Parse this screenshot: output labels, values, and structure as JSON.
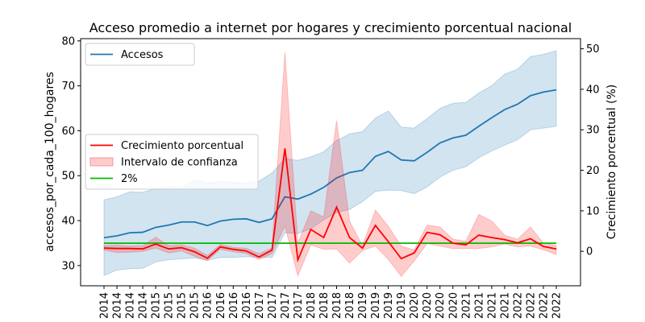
{
  "chart_data": {
    "type": "line",
    "title": "Acceso promedio a internet por hogares y crecimiento porcentual nacional",
    "x_tick_labels": [
      "2014",
      "2014",
      "2014",
      "2014",
      "2015",
      "2015",
      "2015",
      "2015",
      "2016",
      "2016",
      "2016",
      "2016",
      "2017",
      "2017",
      "2017",
      "2017",
      "2018",
      "2018",
      "2018",
      "2018",
      "2019",
      "2019",
      "2019",
      "2019",
      "2020",
      "2020",
      "2020",
      "2020",
      "2021",
      "2021",
      "2021",
      "2021",
      "2022",
      "2022",
      "2022",
      "2022"
    ],
    "left_axis": {
      "label": "accesos_por_cada_100_hogares",
      "ylim": [
        25.5,
        80.5
      ],
      "ticks": [
        30,
        40,
        50,
        60,
        70,
        80
      ]
    },
    "right_axis": {
      "label": "Crecimiento porcentual (%)",
      "ylim": [
        -8.5,
        52.5
      ],
      "ticks": [
        0,
        10,
        20,
        30,
        40,
        50
      ]
    },
    "series": [
      {
        "name": "Accesos",
        "axis": "left",
        "color": "#1f77b4",
        "values": [
          36.2,
          36.6,
          37.3,
          37.4,
          38.5,
          39.0,
          39.7,
          39.7,
          38.9,
          39.9,
          40.3,
          40.4,
          39.6,
          40.4,
          45.3,
          44.8,
          45.9,
          47.4,
          49.5,
          50.7,
          51.2,
          54.3,
          55.4,
          53.5,
          53.3,
          55.2,
          57.3,
          58.4,
          59.0,
          61.0,
          62.9,
          64.7,
          65.9,
          67.8,
          68.6,
          69.1
        ],
        "ci_lower": [
          27.8,
          29.0,
          29.3,
          29.4,
          30.8,
          31.3,
          31.5,
          31.7,
          31.2,
          31.8,
          31.8,
          32.0,
          31.8,
          31.8,
          37.3,
          37.1,
          38.2,
          40.2,
          41.8,
          42.5,
          44.2,
          46.5,
          46.8,
          46.7,
          46.0,
          47.5,
          49.7,
          51.2,
          52.0,
          54.0,
          55.5,
          56.8,
          58.0,
          60.2,
          60.6,
          61.0
        ],
        "ci_upper": [
          44.6,
          45.3,
          46.4,
          46.3,
          47.1,
          47.6,
          47.2,
          49.0,
          48.3,
          48.8,
          48.5,
          48.3,
          48.8,
          50.6,
          53.8,
          53.4,
          54.2,
          55.3,
          57.8,
          59.3,
          59.8,
          62.8,
          64.4,
          60.8,
          60.6,
          62.7,
          65.0,
          66.1,
          66.3,
          68.4,
          70.0,
          72.6,
          73.7,
          76.5,
          77.0,
          77.8
        ]
      },
      {
        "name": "Crecimiento porcentual",
        "axis": "right",
        "color": "#ff0000",
        "values": [
          0.8,
          0.7,
          0.7,
          0.6,
          1.8,
          0.6,
          0.9,
          -0.1,
          -1.7,
          1.1,
          0.5,
          0.1,
          -1.4,
          0.3,
          25.4,
          -2.1,
          5.4,
          3.4,
          10.9,
          3.4,
          0.8,
          6.4,
          2.4,
          -1.8,
          -0.4,
          4.7,
          4.1,
          2.0,
          1.6,
          4.0,
          3.4,
          2.9,
          2.1,
          3.1,
          1.2,
          0.6
        ],
        "ci_lower": [
          0.3,
          -0.3,
          -0.2,
          0.0,
          0.8,
          -0.4,
          0.1,
          -1.2,
          -2.3,
          0.5,
          -0.1,
          -0.5,
          -2.0,
          -0.6,
          6.2,
          -6.1,
          1.6,
          0.5,
          0.6,
          -2.9,
          0.2,
          1.3,
          -2.0,
          -6.2,
          -2.4,
          1.9,
          1.3,
          0.7,
          0.7,
          0.7,
          1.1,
          1.8,
          1.1,
          1.3,
          0.4,
          -0.8
        ],
        "ci_upper": [
          1.4,
          1.5,
          1.3,
          1.4,
          3.5,
          1.4,
          1.6,
          0.8,
          -1.0,
          1.7,
          1.0,
          0.8,
          -0.6,
          0.8,
          49.2,
          2.0,
          10.0,
          8.5,
          32.3,
          7.5,
          1.4,
          10.2,
          6.2,
          1.3,
          0.4,
          6.5,
          6.0,
          3.0,
          2.5,
          9.1,
          7.5,
          4.0,
          3.0,
          6.0,
          2.0,
          1.5
        ]
      },
      {
        "name": "2%",
        "axis": "right",
        "color": "#00bb00",
        "value": 2
      }
    ],
    "legends": [
      {
        "placement": "upper-left",
        "entries": [
          {
            "label": "Accesos",
            "kind": "line",
            "color": "#1f77b4"
          }
        ]
      },
      {
        "placement": "center-left",
        "entries": [
          {
            "label": "Crecimiento porcentual",
            "kind": "line",
            "color": "#ff0000"
          },
          {
            "label": "Intervalo de confianza",
            "kind": "patch",
            "color": "#ff0000"
          },
          {
            "label": "2%",
            "kind": "line",
            "color": "#00bb00"
          }
        ]
      }
    ]
  }
}
